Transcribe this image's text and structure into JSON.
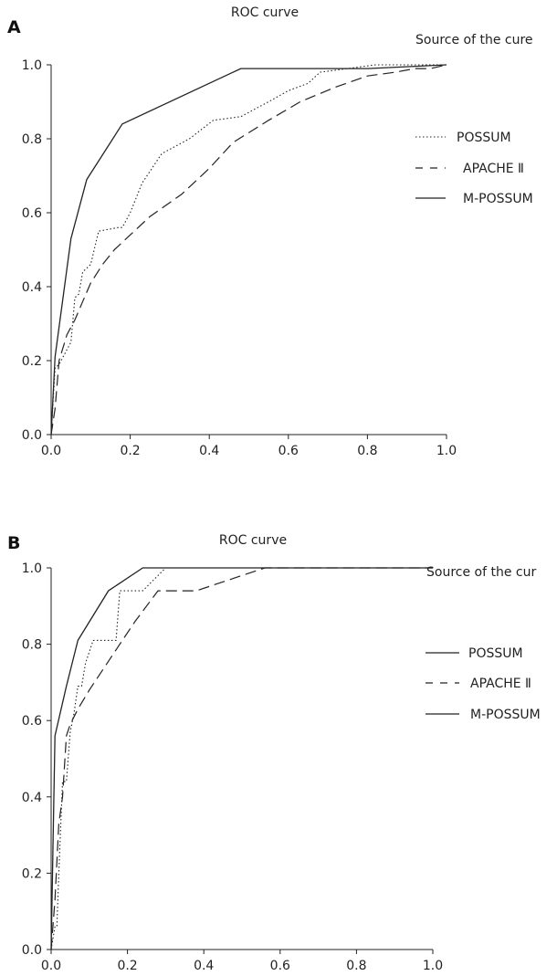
{
  "chart_data": [
    {
      "type": "line",
      "panel": "A",
      "title": "ROC curve",
      "legend_title": "Source of the cure",
      "legend_position": "right",
      "xlim": [
        0,
        1
      ],
      "ylim": [
        0,
        1
      ],
      "xticks": [
        "0.0",
        "0.2",
        "0.4",
        "0.6",
        "0.8",
        "1.0"
      ],
      "yticks": [
        "0.0",
        "0.2",
        "0.4",
        "0.6",
        "0.8",
        "1.0"
      ],
      "grid": false,
      "series": [
        {
          "name": "POSSUM",
          "style": "dotted",
          "x": [
            0,
            0.01,
            0.02,
            0.04,
            0.05,
            0.06,
            0.07,
            0.08,
            0.1,
            0.12,
            0.17,
            0.18,
            0.2,
            0.23,
            0.28,
            0.35,
            0.41,
            0.48,
            0.55,
            0.6,
            0.65,
            0.68,
            0.75,
            0.82,
            0.9,
            1.0
          ],
          "y": [
            0,
            0.18,
            0.19,
            0.23,
            0.25,
            0.37,
            0.38,
            0.44,
            0.46,
            0.55,
            0.56,
            0.56,
            0.6,
            0.68,
            0.76,
            0.8,
            0.85,
            0.86,
            0.9,
            0.93,
            0.95,
            0.98,
            0.99,
            1.0,
            1.0,
            1.0
          ]
        },
        {
          "name": "APACHE Ⅱ",
          "style": "dashed",
          "x": [
            0,
            0.01,
            0.02,
            0.04,
            0.06,
            0.08,
            0.1,
            0.13,
            0.16,
            0.2,
            0.25,
            0.33,
            0.4,
            0.46,
            0.55,
            0.63,
            0.72,
            0.8,
            0.87,
            0.92,
            0.96,
            1.0
          ],
          "y": [
            0,
            0.07,
            0.2,
            0.27,
            0.31,
            0.36,
            0.41,
            0.46,
            0.5,
            0.54,
            0.59,
            0.65,
            0.72,
            0.79,
            0.85,
            0.9,
            0.94,
            0.97,
            0.98,
            0.99,
            0.99,
            1.0
          ]
        },
        {
          "name": "M-POSSUM",
          "style": "solid",
          "x": [
            0,
            0.01,
            0.05,
            0.09,
            0.18,
            0.48,
            0.6,
            0.8,
            1.0
          ],
          "y": [
            0,
            0.21,
            0.53,
            0.69,
            0.84,
            0.99,
            0.99,
            0.99,
            1.0
          ]
        }
      ]
    },
    {
      "type": "line",
      "panel": "B",
      "title": "ROC curve",
      "legend_title": "Source of the cur",
      "legend_position": "right",
      "xlim": [
        0,
        1
      ],
      "ylim": [
        0,
        1
      ],
      "xticks": [
        "0.0",
        "0.2",
        "0.4",
        "0.6",
        "0.8",
        "1.0"
      ],
      "yticks": [
        "0.0",
        "0.2",
        "0.4",
        "0.6",
        "0.8",
        "1.0"
      ],
      "grid": false,
      "series": [
        {
          "name": "POSSUM",
          "style": "dotted",
          "x": [
            0,
            0.01,
            0.015,
            0.02,
            0.03,
            0.04,
            0.05,
            0.06,
            0.07,
            0.08,
            0.09,
            0.1,
            0.11,
            0.13,
            0.17,
            0.18,
            0.24,
            0.3,
            0.5,
            1.0
          ],
          "y": [
            0,
            0.06,
            0.06,
            0.2,
            0.44,
            0.44,
            0.57,
            0.62,
            0.69,
            0.69,
            0.75,
            0.78,
            0.81,
            0.81,
            0.81,
            0.94,
            0.94,
            1.0,
            1.0,
            1.0
          ],
          "line_override_color": "#222"
        },
        {
          "name": "APACHE Ⅱ",
          "style": "dashed",
          "x": [
            0,
            0.01,
            0.02,
            0.03,
            0.04,
            0.05,
            0.07,
            0.1,
            0.14,
            0.18,
            0.22,
            0.28,
            0.38,
            0.56,
            1.0
          ],
          "y": [
            0,
            0.13,
            0.33,
            0.4,
            0.56,
            0.59,
            0.63,
            0.68,
            0.74,
            0.8,
            0.86,
            0.94,
            0.94,
            1.0,
            1.0
          ],
          "line_override_color": "#222"
        },
        {
          "name": "M-POSSUM",
          "style": "solid",
          "x": [
            0,
            0.01,
            0.04,
            0.07,
            0.15,
            0.24,
            0.5,
            1.0
          ],
          "y": [
            0,
            0.56,
            0.69,
            0.81,
            0.94,
            1.0,
            1.0,
            1.0
          ],
          "line_override_color": "#222"
        }
      ],
      "legend_styles_override": [
        "solid",
        "dashed",
        "solid"
      ]
    }
  ]
}
